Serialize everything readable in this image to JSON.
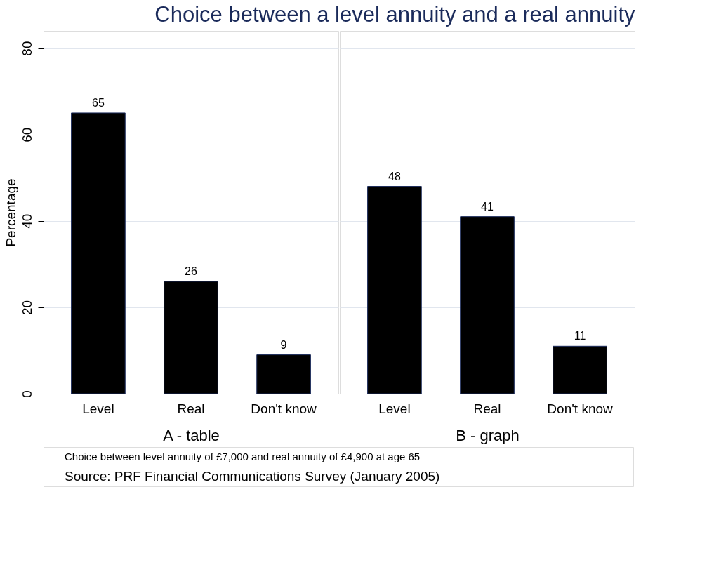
{
  "chart_data": [
    {
      "type": "bar",
      "title": "Choice between a level annuity and a real annuity",
      "xlabel": "A - table",
      "ylabel": "Percentage",
      "categories": [
        "Level",
        "Real",
        "Don't know"
      ],
      "values": [
        65,
        26,
        9
      ],
      "color": "#000000",
      "ylim": [
        0,
        84
      ],
      "yticks": [
        0,
        20,
        40,
        60,
        80
      ],
      "grid": "y",
      "data_labels": true,
      "annotations": [
        "Choice between level annuity of £7,000 and real annuity of £4,900 at age 65",
        "Source: PRF Financial Communications Survey (January 2005)"
      ]
    },
    {
      "type": "bar",
      "xlabel": "B - graph",
      "categories": [
        "Level",
        "Real",
        "Don't know"
      ],
      "values": [
        48,
        41,
        11
      ],
      "color": "#000000",
      "ylim": [
        0,
        84
      ],
      "yticks": [
        0,
        20,
        40,
        60,
        80
      ],
      "grid": "y",
      "data_labels": true,
      "tick_labels": "x"
    }
  ]
}
